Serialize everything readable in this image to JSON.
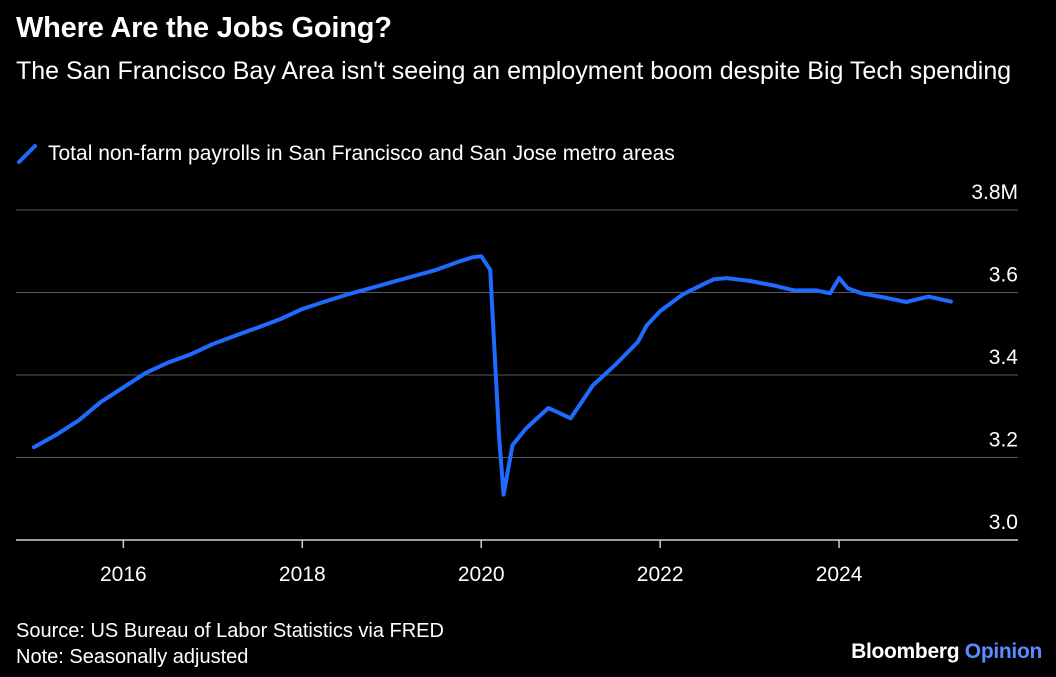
{
  "header": {
    "title": "Where Are the Jobs Going?",
    "subtitle": "The San Francisco Bay Area isn't seeing an employment boom despite Big Tech spending"
  },
  "footer": {
    "source": "Source: US Bureau of Labor Statistics via FRED",
    "note": "Note: Seasonally adjusted"
  },
  "brand": {
    "name": "Bloomberg",
    "accent": "Opinion"
  },
  "colors": {
    "background": "#000000",
    "line": "#1f6bff",
    "grid": "#5a5a5a",
    "brand_accent": "#5a8cff"
  },
  "chart_data": {
    "type": "line",
    "title": "Where Are the Jobs Going?",
    "subtitle": "The San Francisco Bay Area isn't seeing an employment boom despite Big Tech spending",
    "xlabel": "",
    "ylabel": "",
    "x_ticks": [
      "2016",
      "2018",
      "2020",
      "2022",
      "2024"
    ],
    "y_ticks": [
      "3.0",
      "3.2",
      "3.4",
      "3.6",
      "3.8M"
    ],
    "xlim": [
      2014.8,
      2026.0
    ],
    "ylim": [
      3.0,
      3.8
    ],
    "grid": true,
    "legend_position": "top-left",
    "series": [
      {
        "name": "Total non-farm payrolls in San Francisco and San Jose metro areas",
        "x": [
          2015.0,
          2015.25,
          2015.5,
          2015.75,
          2016.0,
          2016.25,
          2016.5,
          2016.75,
          2017.0,
          2017.25,
          2017.5,
          2017.75,
          2018.0,
          2018.25,
          2018.5,
          2018.75,
          2019.0,
          2019.25,
          2019.5,
          2019.75,
          2019.9,
          2020.0,
          2020.1,
          2020.2,
          2020.25,
          2020.35,
          2020.5,
          2020.75,
          2020.85,
          2021.0,
          2021.25,
          2021.5,
          2021.75,
          2021.85,
          2022.0,
          2022.25,
          2022.5,
          2022.6,
          2022.75,
          2022.85,
          2023.0,
          2023.25,
          2023.5,
          2023.75,
          2023.9,
          2024.0,
          2024.1,
          2024.25,
          2024.5,
          2024.75,
          2025.0,
          2025.25
        ],
        "y": [
          3.225,
          3.255,
          3.29,
          3.335,
          3.37,
          3.405,
          3.43,
          3.45,
          3.475,
          3.495,
          3.515,
          3.535,
          3.56,
          3.578,
          3.595,
          3.61,
          3.625,
          3.64,
          3.655,
          3.675,
          3.685,
          3.688,
          3.655,
          3.25,
          3.11,
          3.23,
          3.27,
          3.32,
          3.31,
          3.295,
          3.375,
          3.425,
          3.48,
          3.52,
          3.555,
          3.595,
          3.622,
          3.632,
          3.635,
          3.632,
          3.628,
          3.618,
          3.605,
          3.605,
          3.598,
          3.635,
          3.61,
          3.598,
          3.588,
          3.577,
          3.59,
          3.578
        ]
      }
    ]
  }
}
